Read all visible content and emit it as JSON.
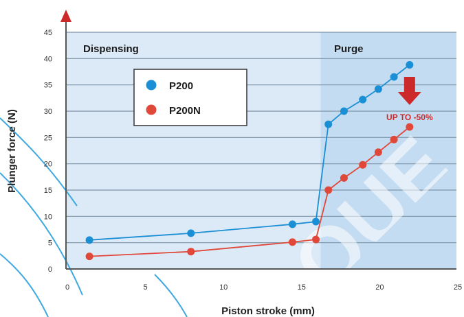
{
  "colors": {
    "dispensing_bg": "#dce9f6",
    "purge_bg": "#c3dcf1",
    "grid": "#7f95a8",
    "p200": "#1a8fd6",
    "p200n": "#e0483a",
    "arrow": "#cc2a2a",
    "axis": "#555555"
  },
  "chart_data": {
    "type": "line",
    "xlabel": "Piston stroke (mm)",
    "ylabel": "Plunger force (N)",
    "xlim": [
      0,
      25
    ],
    "ylim": [
      0,
      45
    ],
    "x_ticks": [
      "0",
      "5",
      "10",
      "15",
      "20",
      "25"
    ],
    "y_ticks": [
      "0",
      "5",
      "10",
      "15",
      "20",
      "25",
      "30",
      "35",
      "40",
      "45"
    ],
    "grid": "horizontal",
    "regions": [
      {
        "label": "Dispensing",
        "x_from": 0,
        "x_to": 16.3
      },
      {
        "label": "Purge",
        "x_from": 16.3,
        "x_to": 25
      }
    ],
    "legend_position": "upper-left",
    "series": [
      {
        "name": "P200",
        "color_key": "p200",
        "points": [
          [
            1.5,
            5.5
          ],
          [
            8,
            6.8
          ],
          [
            14.5,
            8.5
          ],
          [
            16,
            9
          ],
          [
            16.8,
            27.5
          ],
          [
            17.8,
            30
          ],
          [
            19,
            32.2
          ],
          [
            20,
            34.2
          ],
          [
            21,
            36.5
          ],
          [
            22,
            38.8
          ]
        ]
      },
      {
        "name": "P200N",
        "color_key": "p200n",
        "points": [
          [
            1.5,
            2.4
          ],
          [
            8,
            3.3
          ],
          [
            14.5,
            5.1
          ],
          [
            16,
            5.6
          ],
          [
            16.8,
            15
          ],
          [
            17.8,
            17.3
          ],
          [
            19,
            19.8
          ],
          [
            20,
            22.2
          ],
          [
            21,
            24.6
          ],
          [
            22,
            27
          ]
        ]
      }
    ],
    "annotations": [
      {
        "text": "UP TO -50%",
        "x": 22,
        "y": 32,
        "arrow": "down"
      }
    ]
  },
  "watermark": "QUE"
}
